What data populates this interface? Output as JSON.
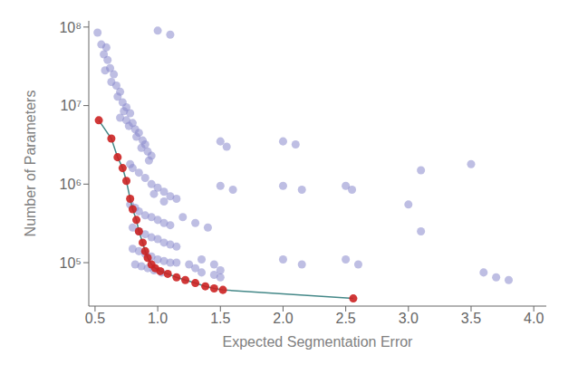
{
  "chart_data": {
    "type": "scatter",
    "xlabel": "Expected Segmentation Error",
    "ylabel": "Number of Parameters",
    "log": "y",
    "grid": false,
    "xlim": [
      0.45,
      4.1
    ],
    "xticks": [
      0.5,
      {
        "value": 1.0,
        "label": "1.0"
      },
      1.5,
      {
        "value": 2.0,
        "label": "2.0"
      },
      2.5,
      {
        "value": 3.0,
        "label": "3.0"
      },
      3.5,
      {
        "value": 4.0,
        "label": "4.0"
      }
    ],
    "ylim": [
      28000.0,
      120000000.0
    ],
    "yticks": [
      {
        "value": 100000,
        "label": "10⁵"
      },
      {
        "value": 1000000,
        "label": "10⁶"
      },
      {
        "value": 10000000,
        "label": "10⁷"
      },
      {
        "value": 100000000,
        "label": "10⁸"
      }
    ],
    "series": [
      {
        "type": "scatter",
        "color": "#8888cc",
        "values": [
          [
            0.52,
            85000000.0
          ],
          [
            0.55,
            60000000.0
          ],
          [
            0.57,
            45000000.0
          ],
          [
            0.59,
            55000000.0
          ],
          [
            0.6,
            38000000.0
          ],
          [
            0.58,
            28000000.0
          ],
          [
            0.62,
            30000000.0
          ],
          [
            0.65,
            25000000.0
          ],
          [
            0.63,
            20000000.0
          ],
          [
            0.67,
            18000000.0
          ],
          [
            0.7,
            15000000.0
          ],
          [
            0.68,
            13000000.0
          ],
          [
            0.72,
            11000000.0
          ],
          [
            0.75,
            9500000.0
          ],
          [
            0.73,
            8500000.0
          ],
          [
            0.78,
            8000000.0
          ],
          [
            0.7,
            7000000.0
          ],
          [
            0.75,
            6500000.0
          ],
          [
            0.8,
            6000000.0
          ],
          [
            0.77,
            5500000.0
          ],
          [
            0.82,
            5000000.0
          ],
          [
            0.85,
            4500000.0
          ],
          [
            0.83,
            4000000.0
          ],
          [
            0.88,
            3600000.0
          ],
          [
            0.9,
            3200000.0
          ],
          [
            0.87,
            2900000.0
          ],
          [
            0.92,
            2600000.0
          ],
          [
            0.95,
            2300000.0
          ],
          [
            0.93,
            2000000.0
          ],
          [
            0.78,
            1800000.0
          ],
          [
            0.8,
            1600000.0
          ],
          [
            0.85,
            1400000.0
          ],
          [
            0.9,
            1200000.0
          ],
          [
            0.95,
            1000000.0
          ],
          [
            1.0,
            900000.0
          ],
          [
            1.05,
            800000.0
          ],
          [
            0.97,
            750000.0
          ],
          [
            1.1,
            700000.0
          ],
          [
            1.15,
            650000.0
          ],
          [
            1.05,
            600000.0
          ],
          [
            0.78,
            550000.0
          ],
          [
            0.82,
            500000.0
          ],
          [
            0.85,
            450000.0
          ],
          [
            0.9,
            400000.0
          ],
          [
            0.95,
            380000.0
          ],
          [
            1.0,
            350000.0
          ],
          [
            1.05,
            320000.0
          ],
          [
            1.1,
            300000.0
          ],
          [
            0.8,
            280000.0
          ],
          [
            0.85,
            250000.0
          ],
          [
            0.9,
            230000.0
          ],
          [
            0.95,
            210000.0
          ],
          [
            1.0,
            200000.0
          ],
          [
            1.05,
            180000.0
          ],
          [
            1.1,
            170000.0
          ],
          [
            1.15,
            160000.0
          ],
          [
            0.8,
            150000.0
          ],
          [
            0.85,
            140000.0
          ],
          [
            0.9,
            130000.0
          ],
          [
            0.95,
            120000.0
          ],
          [
            1.0,
            110000.0
          ],
          [
            1.05,
            105000.0
          ],
          [
            1.1,
            100000.0
          ],
          [
            0.82,
            95000.0
          ],
          [
            0.87,
            90000.0
          ],
          [
            0.92,
            85000.0
          ],
          [
            0.97,
            80000.0
          ],
          [
            1.03,
            75000.0
          ],
          [
            1.15,
            100000.0
          ],
          [
            1.25,
            95000.0
          ],
          [
            1.3,
            85000.0
          ],
          [
            1.35,
            110000.0
          ],
          [
            1.45,
            95000.0
          ],
          [
            1.5,
            80000.0
          ],
          [
            1.35,
            75000.0
          ],
          [
            1.45,
            70000.0
          ],
          [
            1.5,
            65000.0
          ],
          [
            1.2,
            380000.0
          ],
          [
            1.3,
            320000.0
          ],
          [
            1.4,
            280000.0
          ],
          [
            1.0,
            90000000.0
          ],
          [
            1.1,
            80000000.0
          ],
          [
            1.5,
            3500000.0
          ],
          [
            1.55,
            3000000.0
          ],
          [
            1.5,
            950000.0
          ],
          [
            1.6,
            850000.0
          ],
          [
            2.0,
            3500000.0
          ],
          [
            2.1,
            3200000.0
          ],
          [
            2.0,
            950000.0
          ],
          [
            2.15,
            850000.0
          ],
          [
            2.0,
            110000.0
          ],
          [
            2.15,
            95000.0
          ],
          [
            2.5,
            950000.0
          ],
          [
            2.55,
            850000.0
          ],
          [
            2.5,
            110000.0
          ],
          [
            2.6,
            95000.0
          ],
          [
            3.0,
            550000.0
          ],
          [
            3.1,
            250000.0
          ],
          [
            3.1,
            1500000.0
          ],
          [
            3.5,
            1800000.0
          ],
          [
            3.6,
            75000.0
          ],
          [
            3.7,
            65000.0
          ],
          [
            3.8,
            60000.0
          ]
        ]
      },
      {
        "type": "line",
        "color": "#448888",
        "values": [
          [
            0.53,
            6500000.0
          ],
          [
            0.63,
            3800000.0
          ],
          [
            0.68,
            2200000.0
          ],
          [
            0.72,
            1600000.0
          ],
          [
            0.75,
            1100000.0
          ],
          [
            0.78,
            650000.0
          ],
          [
            0.8,
            480000.0
          ],
          [
            0.83,
            350000.0
          ],
          [
            0.85,
            250000.0
          ],
          [
            0.88,
            180000.0
          ],
          [
            0.9,
            140000.0
          ],
          [
            0.92,
            115000.0
          ],
          [
            0.95,
            95000.0
          ],
          [
            0.98,
            85000.0
          ],
          [
            1.02,
            78000.0
          ],
          [
            1.08,
            72000.0
          ],
          [
            1.15,
            65000.0
          ],
          [
            1.22,
            60000.0
          ],
          [
            1.3,
            55000.0
          ],
          [
            1.38,
            50000.0
          ],
          [
            1.45,
            47000.0
          ],
          [
            1.52,
            45000.0
          ],
          [
            2.56,
            35000.0
          ]
        ]
      },
      {
        "type": "scatter",
        "color": "#cc2222",
        "values": [
          [
            0.53,
            6500000.0
          ],
          [
            0.63,
            3800000.0
          ],
          [
            0.68,
            2200000.0
          ],
          [
            0.72,
            1600000.0
          ],
          [
            0.75,
            1100000.0
          ],
          [
            0.78,
            650000.0
          ],
          [
            0.8,
            480000.0
          ],
          [
            0.83,
            350000.0
          ],
          [
            0.85,
            250000.0
          ],
          [
            0.88,
            180000.0
          ],
          [
            0.9,
            140000.0
          ],
          [
            0.92,
            115000.0
          ],
          [
            0.95,
            95000.0
          ],
          [
            0.98,
            85000.0
          ],
          [
            1.02,
            78000.0
          ],
          [
            1.08,
            72000.0
          ],
          [
            1.15,
            65000.0
          ],
          [
            1.22,
            60000.0
          ],
          [
            1.3,
            55000.0
          ],
          [
            1.38,
            50000.0
          ],
          [
            1.45,
            47000.0
          ],
          [
            1.52,
            45000.0
          ],
          [
            2.56,
            35000.0
          ]
        ]
      }
    ]
  }
}
